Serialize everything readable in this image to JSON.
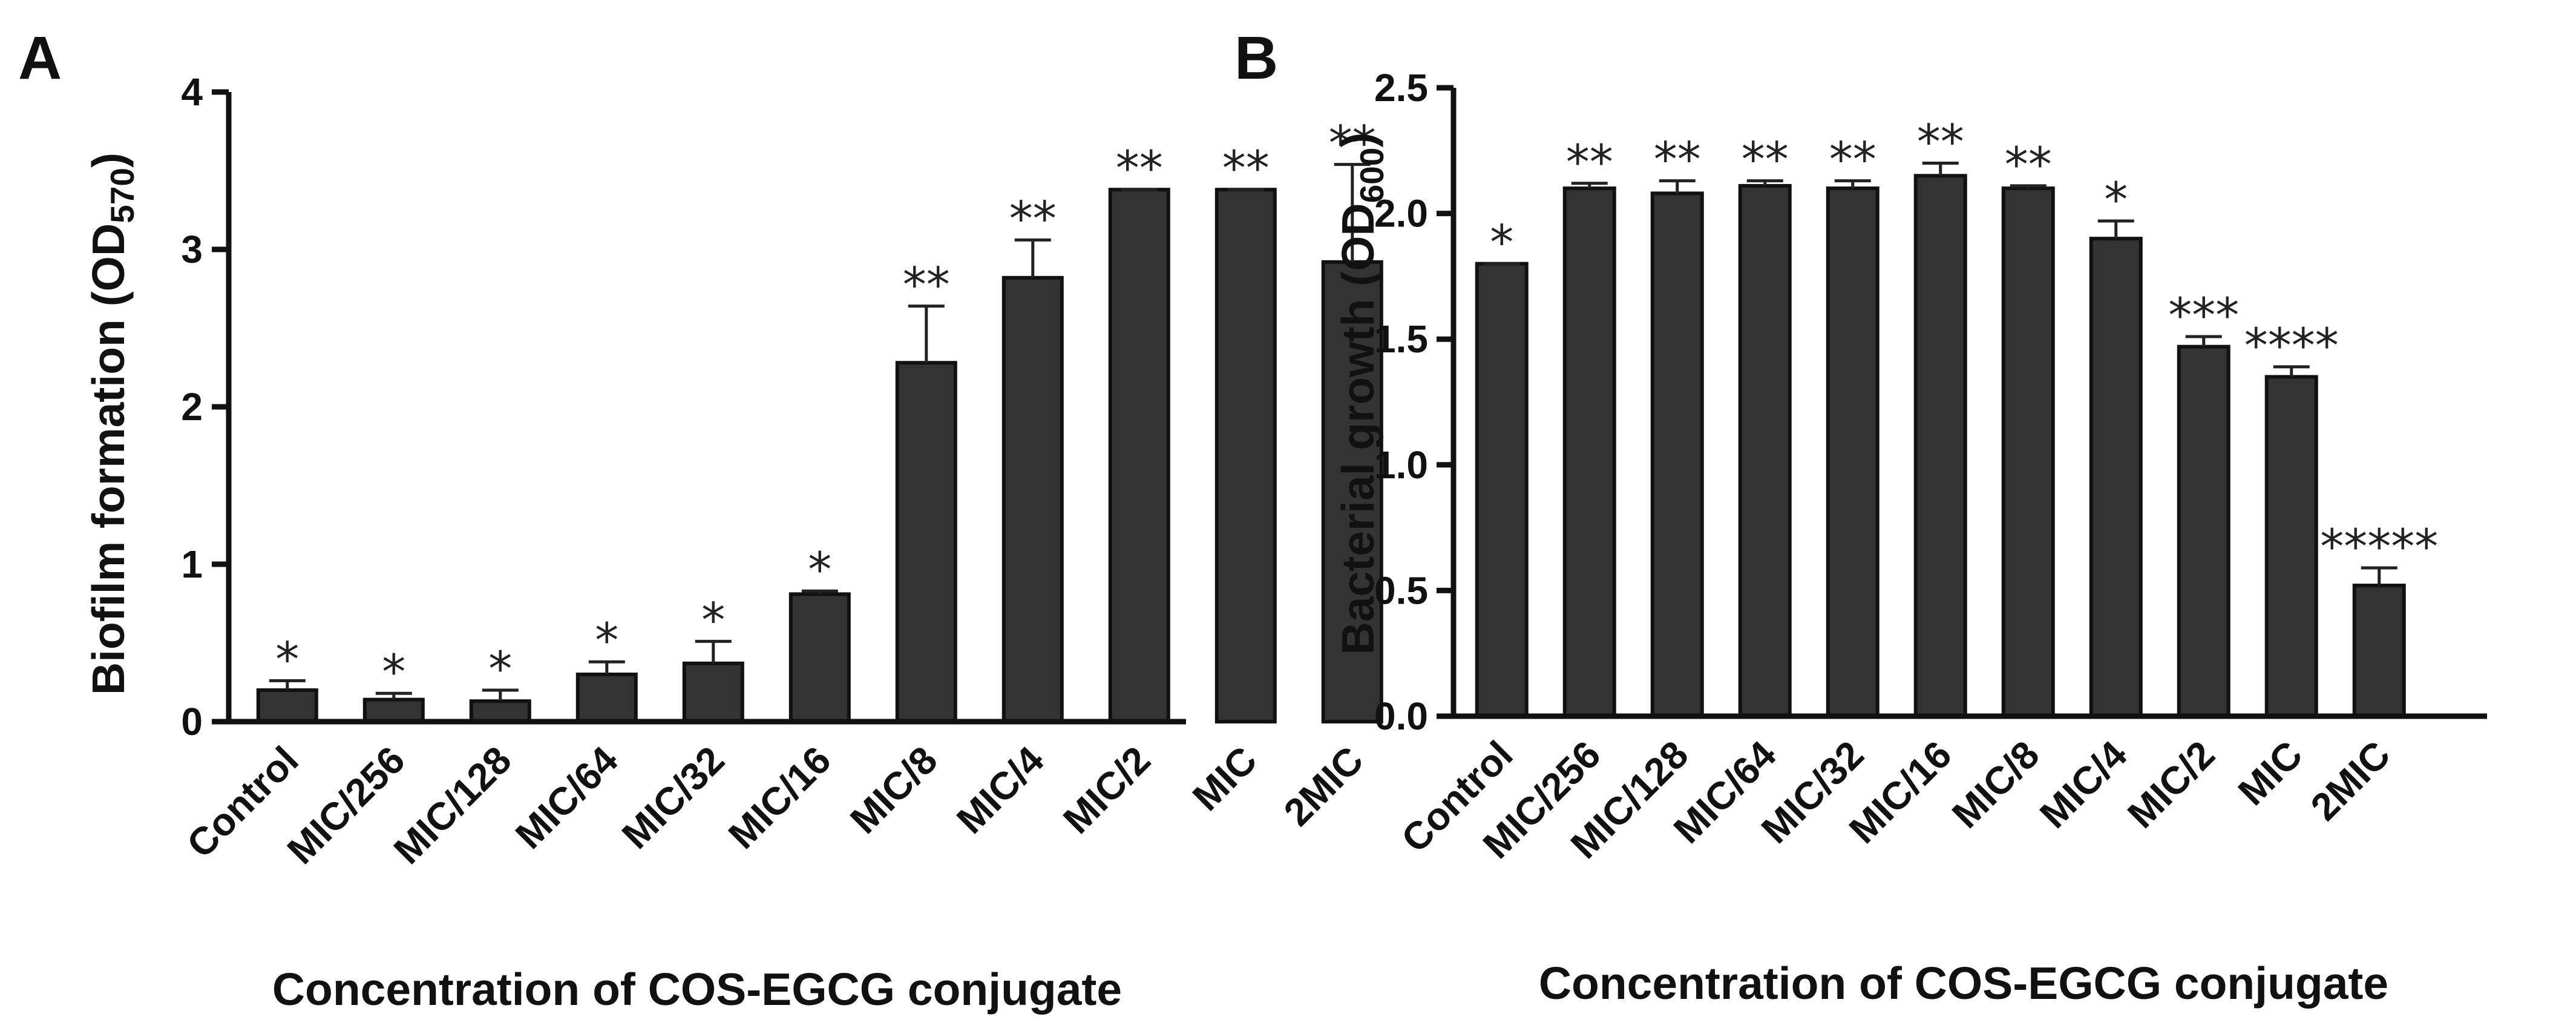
{
  "chart_data": [
    {
      "type": "bar",
      "panel": "A",
      "title": "",
      "xlabel": "Concentration of COS-EGCG conjugate",
      "ylabel": "Biofilm formation (OD570)",
      "ylabel_main": "Biofilm formation (OD",
      "ylabel_sub": "570",
      "ylabel_end": ")",
      "ylim": [
        0,
        4
      ],
      "yticks": [
        0,
        1,
        2,
        3,
        4
      ],
      "ytick_labels": [
        "0",
        "1",
        "2",
        "3",
        "4"
      ],
      "categories": [
        "Control",
        "MIC/256",
        "MIC/128",
        "MIC/64",
        "MIC/32",
        "MIC/16",
        "MIC/8",
        "MIC/4",
        "MIC/2",
        "MIC",
        "2MIC"
      ],
      "values": [
        0.2,
        0.14,
        0.13,
        0.3,
        0.37,
        0.81,
        2.28,
        2.82,
        3.38,
        3.38,
        2.92
      ],
      "errors": [
        0.06,
        0.04,
        0.07,
        0.08,
        0.14,
        0.02,
        0.36,
        0.24,
        0.0,
        0.0,
        0.62
      ],
      "significance": [
        "*",
        "*",
        "*",
        "*",
        "*",
        "*",
        "**",
        "**",
        "**",
        "**",
        "**"
      ],
      "bar_color": "#333333"
    },
    {
      "type": "bar",
      "panel": "B",
      "title": "",
      "xlabel": "Concentration of COS-EGCG conjugate",
      "ylabel": "Bacterial growth (OD600)",
      "ylabel_main": "Bacterial growth (OD",
      "ylabel_sub": "600",
      "ylabel_end": ")",
      "ylim": [
        0,
        2.5
      ],
      "yticks": [
        0,
        0.5,
        1.0,
        1.5,
        2.0,
        2.5
      ],
      "ytick_labels": [
        "0.0",
        "0.5",
        "1.0",
        "1.5",
        "2.0",
        "2.5"
      ],
      "categories": [
        "Control",
        "MIC/256",
        "MIC/128",
        "MIC/64",
        "MIC/32",
        "MIC/16",
        "MIC/8",
        "MIC/4",
        "MIC/2",
        "MIC",
        "2MIC"
      ],
      "values": [
        1.8,
        2.1,
        2.08,
        2.11,
        2.1,
        2.15,
        2.1,
        1.9,
        1.47,
        1.35,
        0.52
      ],
      "errors": [
        0.0,
        0.02,
        0.05,
        0.02,
        0.03,
        0.05,
        0.01,
        0.07,
        0.04,
        0.04,
        0.07
      ],
      "significance": [
        "*",
        "**",
        "**",
        "**",
        "**",
        "**",
        "**",
        "*",
        "***",
        "****",
        "*****"
      ],
      "bar_color": "#333333"
    }
  ]
}
